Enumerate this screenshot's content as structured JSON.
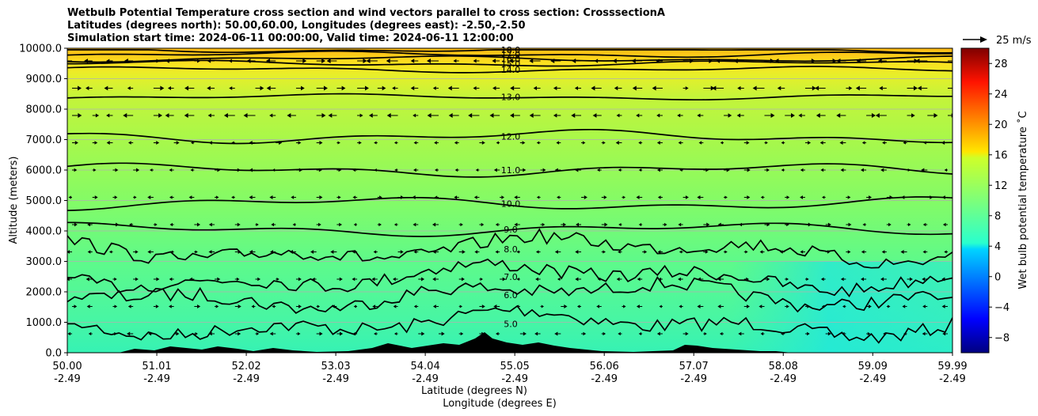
{
  "title_lines": [
    "Wetbulb Potential Temperature cross section and wind vectors parallel to cross section: CrosssectionA",
    "Latitudes (degrees north): 50.00,60.00, Longitudes (degrees east): -2.50,-2.50",
    "Simulation start time: 2024-06-11 00:00:00, Valid time: 2024-06-11 12:00:00"
  ],
  "chart_data": {
    "type": "heatmap",
    "ylabel": "Altitude (meters)",
    "xlabel_lines": [
      "Latitude (degrees N)",
      "Longitude (degrees E)"
    ],
    "ylim": [
      0,
      10000
    ],
    "xlim": [
      50.0,
      59.99
    ],
    "y_ticks": [
      0,
      1000,
      2000,
      3000,
      4000,
      5000,
      6000,
      7000,
      8000,
      9000,
      10000
    ],
    "y_tick_labels": [
      "0.0",
      "1000.0",
      "2000.0",
      "3000.0",
      "4000.0",
      "5000.0",
      "6000.0",
      "7000.0",
      "8000.0",
      "9000.0",
      "10000.0"
    ],
    "x_ticks": [
      50.0,
      51.01,
      52.02,
      53.03,
      54.04,
      55.05,
      56.06,
      57.07,
      58.08,
      59.09,
      59.99
    ],
    "x_tick_labels_lat": [
      "50.00",
      "51.01",
      "52.02",
      "53.03",
      "54.04",
      "55.05",
      "56.06",
      "57.07",
      "58.08",
      "59.09",
      "59.99"
    ],
    "x_tick_labels_lon": [
      "-2.49",
      "-2.49",
      "-2.49",
      "-2.49",
      "-2.49",
      "-2.49",
      "-2.49",
      "-2.49",
      "-2.49",
      "-2.49",
      "-2.49"
    ],
    "grid": "horizontal",
    "colorbar": {
      "label": "Wet bulb potential temperature ˚C",
      "range": [
        -10,
        30
      ],
      "ticks": [
        -8,
        -4,
        0,
        4,
        8,
        12,
        16,
        20,
        24,
        28
      ],
      "tick_labels": [
        "−8",
        "−4",
        "0",
        "4",
        "8",
        "12",
        "16",
        "20",
        "24",
        "28"
      ],
      "colormap": "jet"
    },
    "quiver_key": {
      "label": "25 m/s"
    },
    "contour_levels": [
      {
        "value": 5.0,
        "label": "5.0",
        "y_mean": 950
      },
      {
        "value": 6.0,
        "label": "6.0",
        "y_mean": 1900
      },
      {
        "value": 7.0,
        "label": "7.0",
        "y_mean": 2500
      },
      {
        "value": 8.0,
        "label": "8.0",
        "y_mean": 3400
      },
      {
        "value": 9.0,
        "label": "9.0",
        "y_mean": 4050
      },
      {
        "value": 10.0,
        "label": "10.0",
        "y_mean": 4900
      },
      {
        "value": 11.0,
        "label": "11.0",
        "y_mean": 6000
      },
      {
        "value": 12.0,
        "label": "12.0",
        "y_mean": 7100
      },
      {
        "value": 13.0,
        "label": "13.0",
        "y_mean": 8400
      },
      {
        "value": 14.0,
        "label": "14.0",
        "y_mean": 9300
      },
      {
        "value": 15.0,
        "label": "15.0",
        "y_mean": 9500
      },
      {
        "value": 16.0,
        "label": "16.0",
        "y_mean": 9650
      },
      {
        "value": 17.0,
        "label": "17.0",
        "y_mean": 9800
      },
      {
        "value": 18.0,
        "label": "18.0",
        "y_mean": 9950
      }
    ]
  }
}
